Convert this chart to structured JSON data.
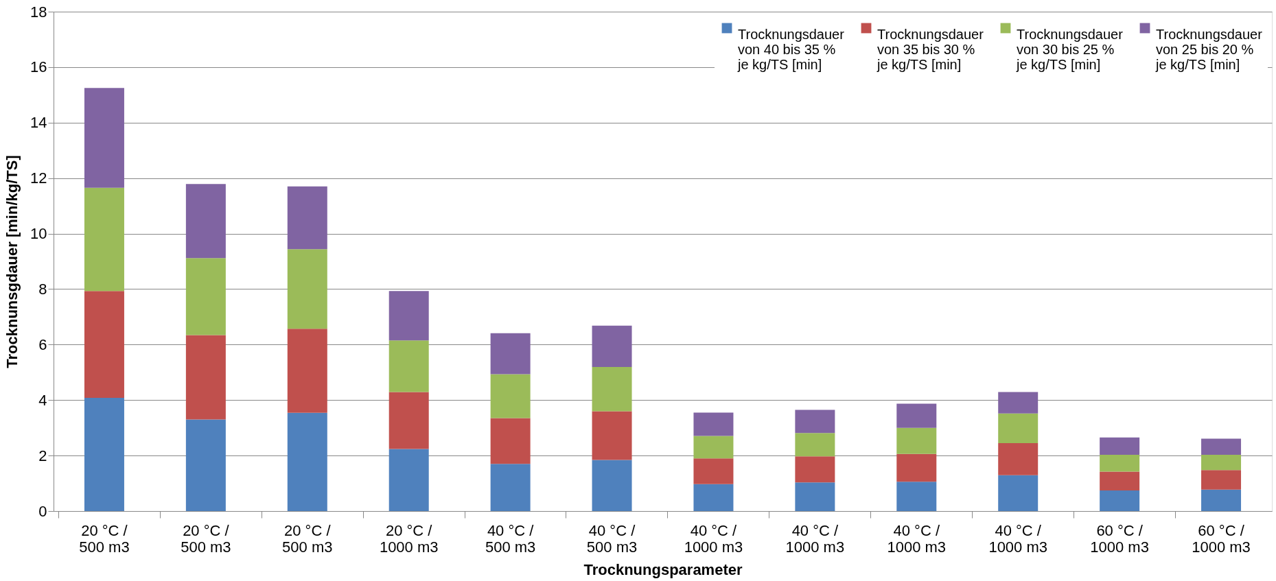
{
  "chart_data": {
    "type": "bar",
    "stacked": true,
    "xlabel": "Trocknungsparameter",
    "ylabel": "Trocknunsgdauer [min/kg/TS]",
    "categories": [
      "20 °C / 500 m3",
      "20 °C / 500 m3",
      "20 °C / 500 m3",
      "20 °C / 1000 m3",
      "40 °C / 500 m3",
      "40 °C / 500 m3",
      "40 °C / 1000 m3",
      "40 °C / 1000 m3",
      "40 °C / 1000 m3",
      "40 °C / 1000 m3",
      "60 °C / 1000 m3",
      "60 °C / 1000 m3"
    ],
    "series": [
      {
        "name": "Trocknungsdauer\nvon 40 bis 35 %\nje kg/TS [min]",
        "color": "#4f81bd",
        "values": [
          4.08,
          3.3,
          3.54,
          2.24,
          1.7,
          1.84,
          0.97,
          1.03,
          1.06,
          1.29,
          0.74,
          0.77
        ]
      },
      {
        "name": "Trocknungsdauer\nvon 35 bis 30 %\n je kg/TS [min]",
        "color": "#c0504d",
        "values": [
          3.85,
          3.04,
          3.03,
          2.05,
          1.65,
          1.76,
          0.93,
          0.94,
          1.0,
          1.16,
          0.68,
          0.71
        ]
      },
      {
        "name": "Trocknungsdauer\nvon 30 bis 25 %\nje kg/TS [min]",
        "color": "#9bbb59",
        "values": [
          3.72,
          2.78,
          2.87,
          1.86,
          1.58,
          1.59,
          0.81,
          0.84,
          0.94,
          1.07,
          0.61,
          0.55
        ]
      },
      {
        "name": "Trocknungsdauer\nvon 25 bis 20 %\nje kg/TS [min]",
        "color": "#8064a2",
        "values": [
          3.6,
          2.67,
          2.26,
          1.78,
          1.48,
          1.49,
          0.84,
          0.84,
          0.87,
          0.77,
          0.62,
          0.58
        ]
      }
    ],
    "ylim": [
      0,
      18
    ],
    "yticks": [
      0,
      2,
      4,
      6,
      8,
      10,
      12,
      14,
      16,
      18
    ],
    "grid": "y",
    "legend": "top right"
  }
}
